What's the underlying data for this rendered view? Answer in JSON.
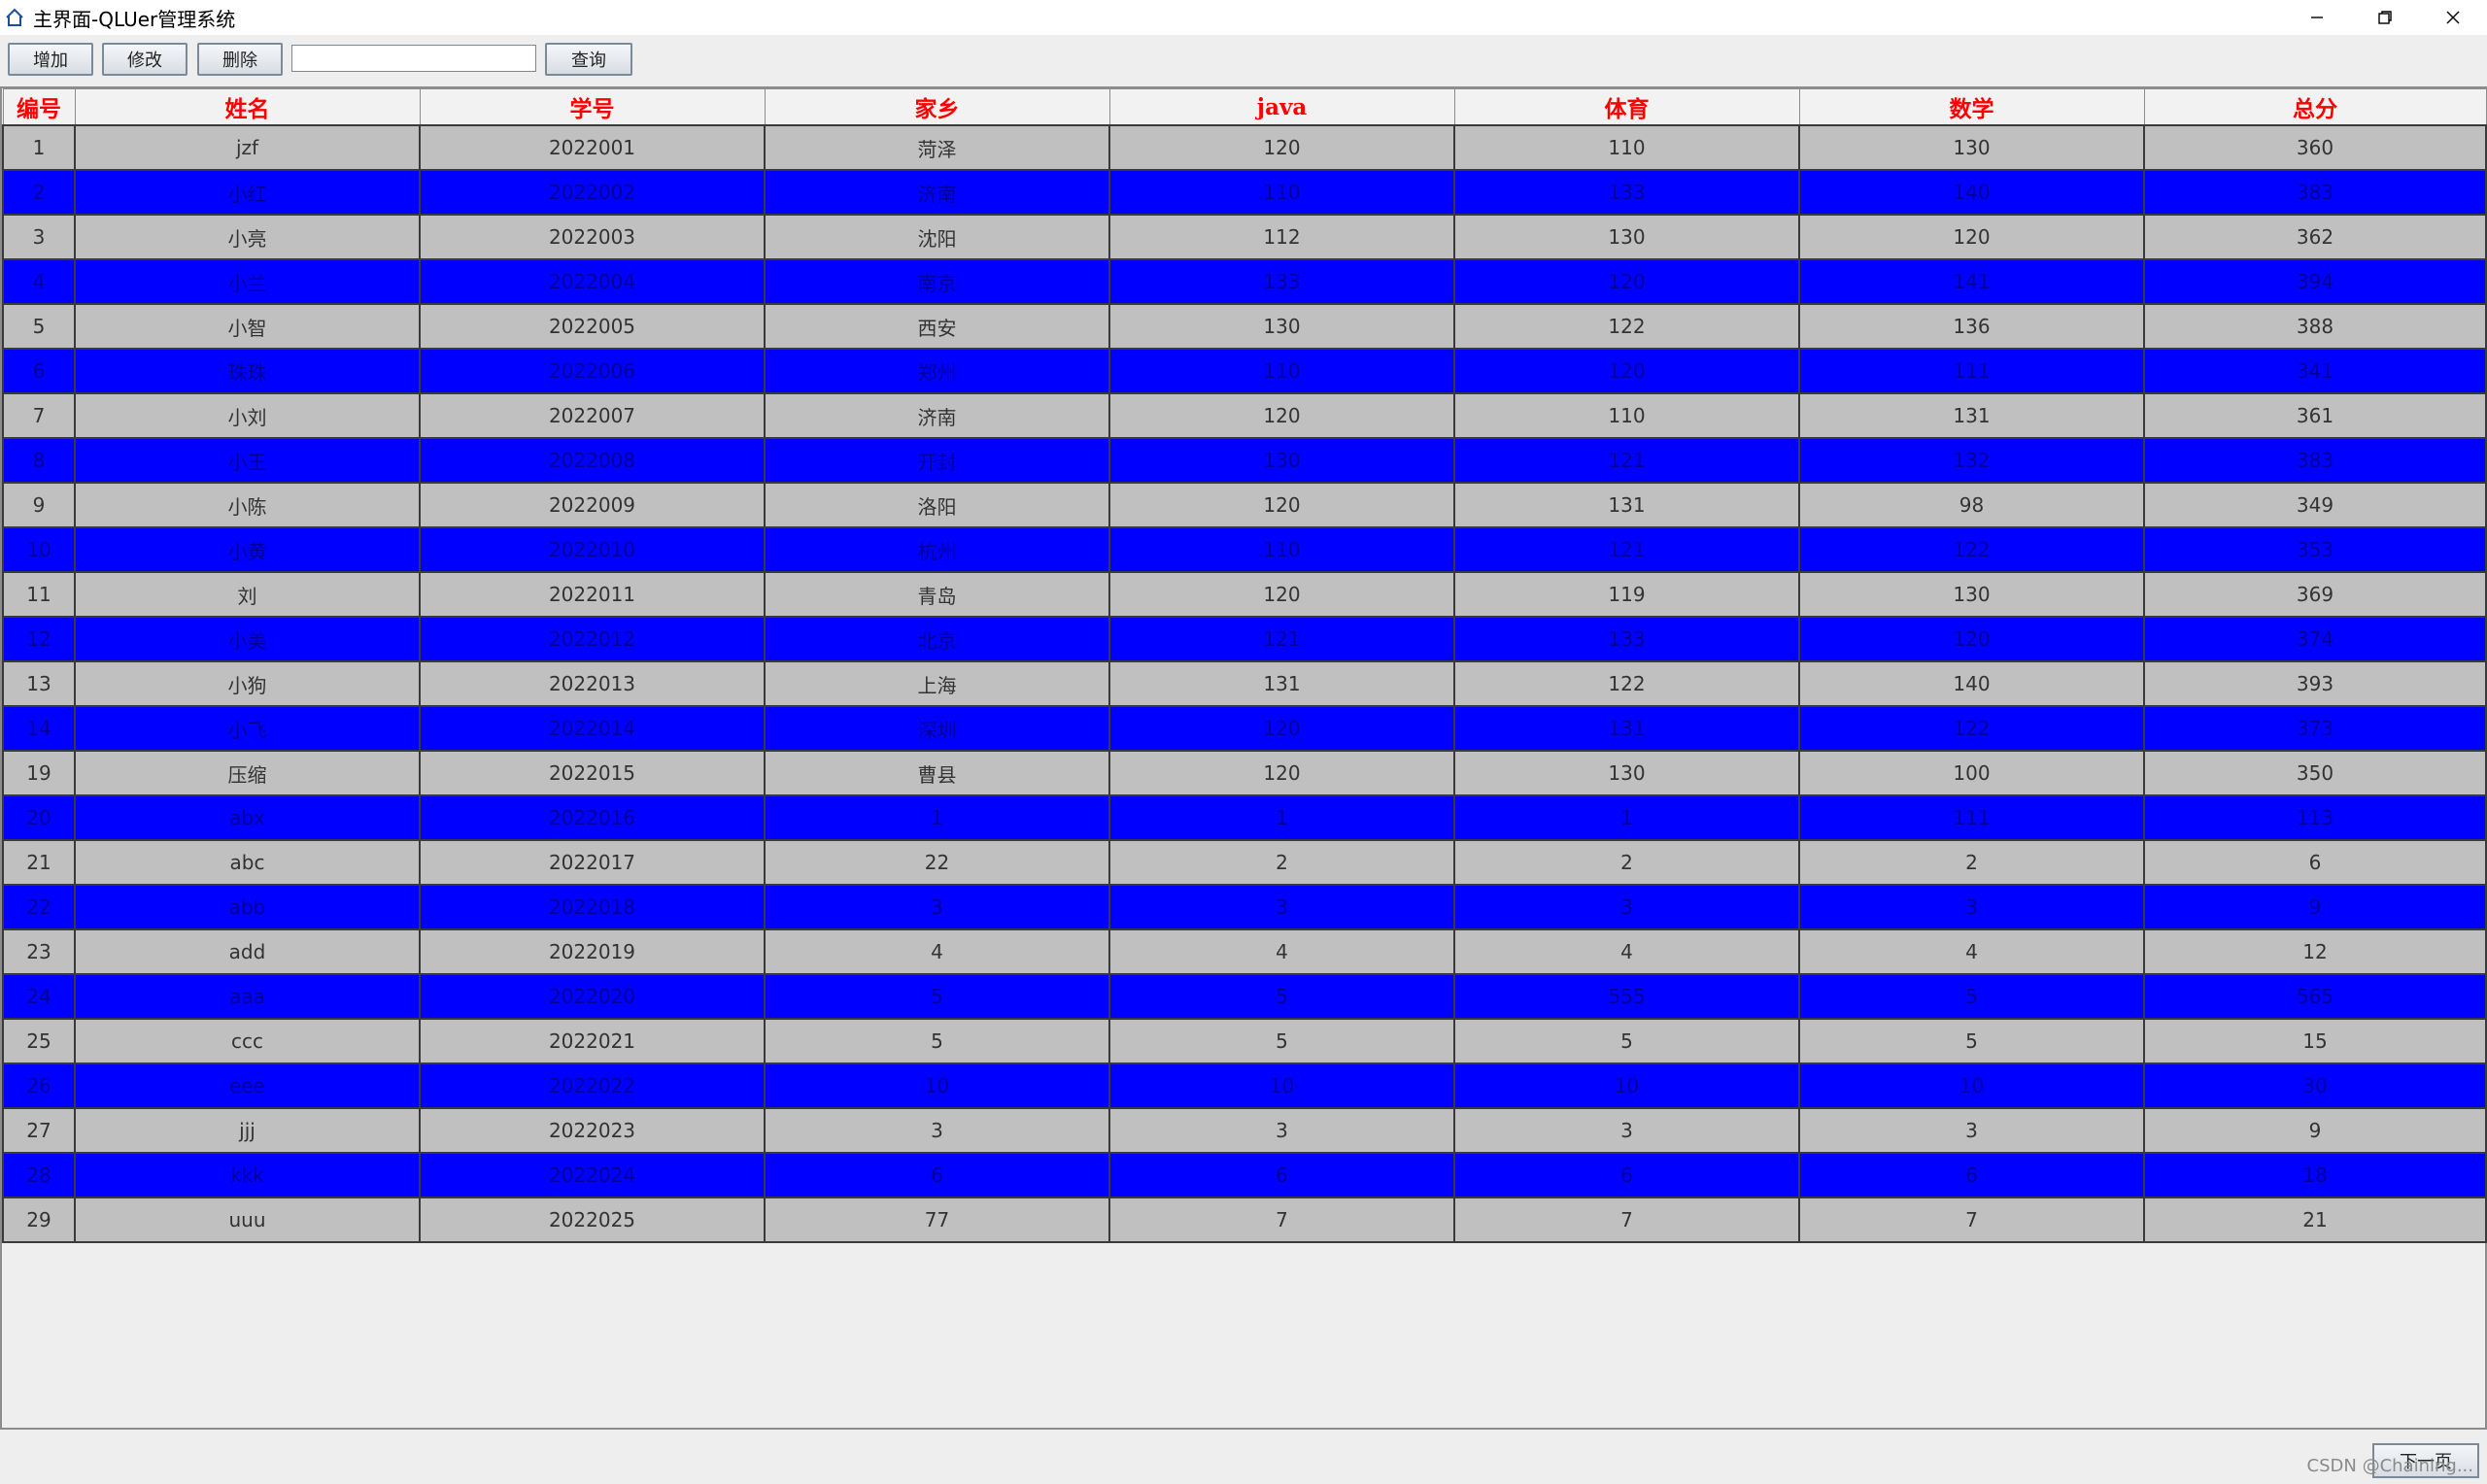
{
  "window": {
    "title": "主界面-QLUer管理系统",
    "controls": [
      "minimize-icon",
      "restore-icon",
      "close-icon"
    ]
  },
  "toolbar": {
    "add_label": "增加",
    "edit_label": "修改",
    "delete_label": "删除",
    "search_value": "",
    "query_label": "查询"
  },
  "table": {
    "headers": [
      "编号",
      "姓名",
      "学号",
      "家乡",
      "java",
      "体育",
      "数学",
      "总分"
    ],
    "header_color": "#ff0000",
    "row_colors": {
      "even": "#c0c0c0",
      "odd": "#0000ff"
    },
    "rows": [
      [
        "1",
        "jzf",
        "2022001",
        "菏泽",
        "120",
        "110",
        "130",
        "360"
      ],
      [
        "2",
        "小红",
        "2022002",
        "济南",
        "110",
        "133",
        "140",
        "383"
      ],
      [
        "3",
        "小亮",
        "2022003",
        "沈阳",
        "112",
        "130",
        "120",
        "362"
      ],
      [
        "4",
        "小兰",
        "2022004",
        "南京",
        "133",
        "120",
        "141",
        "394"
      ],
      [
        "5",
        "小智",
        "2022005",
        "西安",
        "130",
        "122",
        "136",
        "388"
      ],
      [
        "6",
        "珠珠",
        "2022006",
        "郑州",
        "110",
        "120",
        "111",
        "341"
      ],
      [
        "7",
        "小刘",
        "2022007",
        "济南",
        "120",
        "110",
        "131",
        "361"
      ],
      [
        "8",
        "小王",
        "2022008",
        "开封",
        "130",
        "121",
        "132",
        "383"
      ],
      [
        "9",
        "小陈",
        "2022009",
        "洛阳",
        "120",
        "131",
        "98",
        "349"
      ],
      [
        "10",
        "小黄",
        "2022010",
        "杭州",
        "110",
        "121",
        "122",
        "353"
      ],
      [
        "11",
        "刘",
        "2022011",
        "青岛",
        "120",
        "119",
        "130",
        "369"
      ],
      [
        "12",
        "小美",
        "2022012",
        "北京",
        "121",
        "133",
        "120",
        "374"
      ],
      [
        "13",
        "小狗",
        "2022013",
        "上海",
        "131",
        "122",
        "140",
        "393"
      ],
      [
        "14",
        "小飞",
        "2022014",
        "深圳",
        "120",
        "131",
        "122",
        "373"
      ],
      [
        "19",
        "压缩",
        "2022015",
        "曹县",
        "120",
        "130",
        "100",
        "350"
      ],
      [
        "20",
        "abx",
        "2022016",
        "1",
        "1",
        "1",
        "111",
        "113"
      ],
      [
        "21",
        "abc",
        "2022017",
        "22",
        "2",
        "2",
        "2",
        "6"
      ],
      [
        "22",
        "abb",
        "2022018",
        "3",
        "3",
        "3",
        "3",
        "9"
      ],
      [
        "23",
        "add",
        "2022019",
        "4",
        "4",
        "4",
        "4",
        "12"
      ],
      [
        "24",
        "aaa",
        "2022020",
        "5",
        "5",
        "555",
        "5",
        "565"
      ],
      [
        "25",
        "ccc",
        "2022021",
        "5",
        "5",
        "5",
        "5",
        "15"
      ],
      [
        "26",
        "eee",
        "2022022",
        "10",
        "10",
        "10",
        "10",
        "30"
      ],
      [
        "27",
        "jjj",
        "2022023",
        "3",
        "3",
        "3",
        "3",
        "9"
      ],
      [
        "28",
        "kkk",
        "2022024",
        "6",
        "6",
        "6",
        "6",
        "18"
      ],
      [
        "29",
        "uuu",
        "2022025",
        "77",
        "7",
        "7",
        "7",
        "21"
      ]
    ]
  },
  "footer": {
    "next_label": "下一页",
    "watermark": "CSDN @Chaining..."
  }
}
